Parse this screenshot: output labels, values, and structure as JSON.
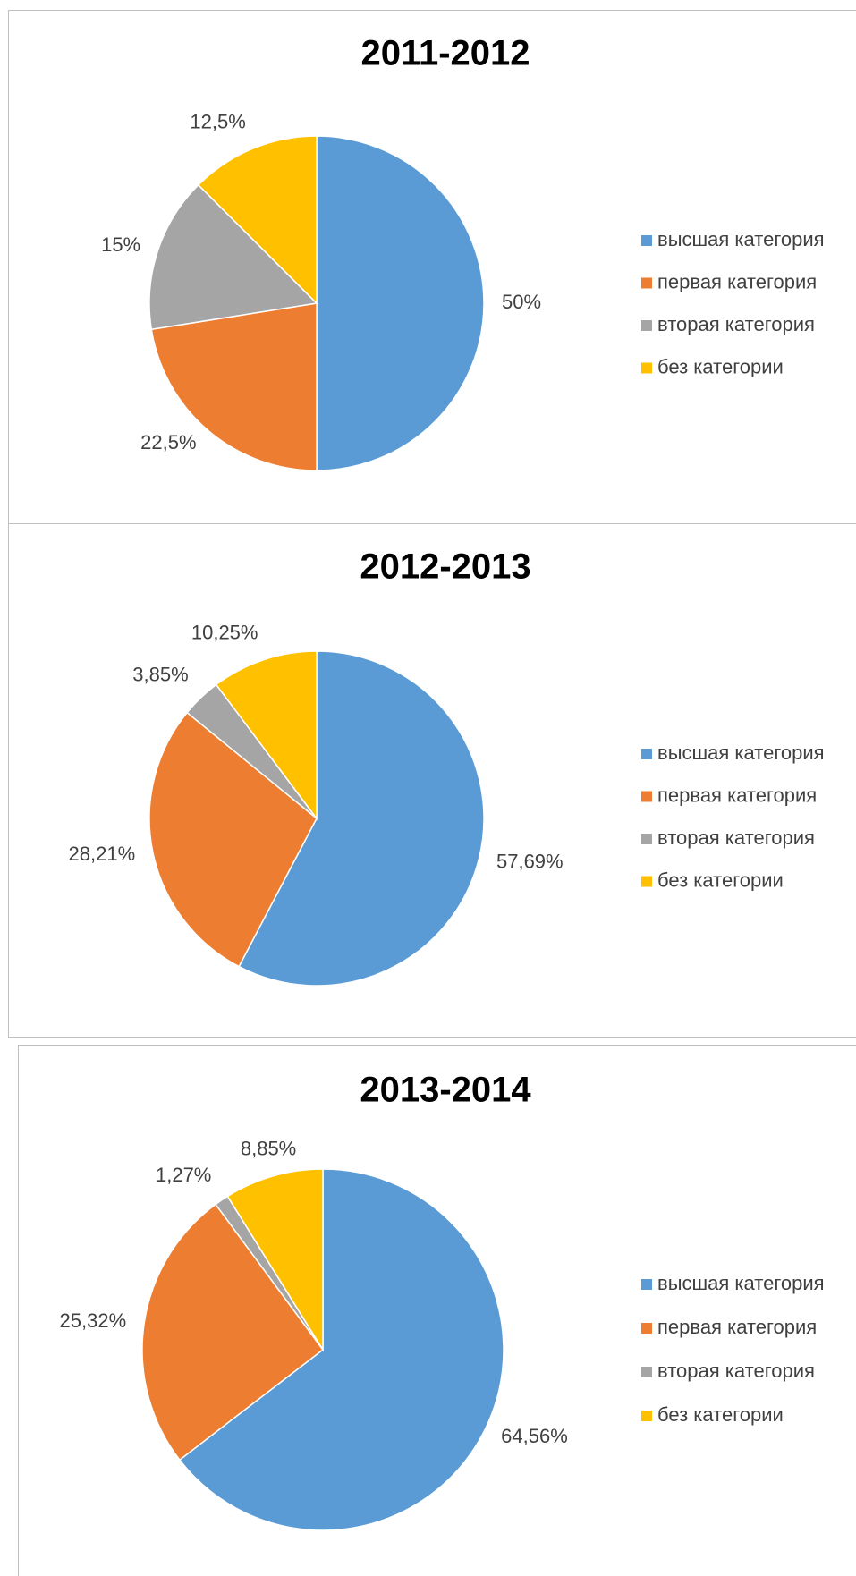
{
  "chart_data": [
    {
      "type": "pie",
      "title": "2011-2012",
      "categories": [
        "высшая категория",
        "первая категория",
        "вторая категория",
        "без категории"
      ],
      "values": [
        50,
        22.5,
        15,
        12.5
      ],
      "value_labels": [
        "50%",
        "22,5%",
        "15%",
        "12,5%"
      ],
      "colors": [
        "#5b9bd5",
        "#ed7d31",
        "#a5a5a5",
        "#ffc000"
      ],
      "legend": "right"
    },
    {
      "type": "pie",
      "title": "2012-2013",
      "categories": [
        "высшая категория",
        "первая категория",
        "вторая категория",
        "без категории"
      ],
      "values": [
        57.69,
        28.21,
        3.85,
        10.25
      ],
      "value_labels": [
        "57,69%",
        "28,21%",
        "3,85%",
        "10,25%"
      ],
      "colors": [
        "#5b9bd5",
        "#ed7d31",
        "#a5a5a5",
        "#ffc000"
      ],
      "legend": "right"
    },
    {
      "type": "pie",
      "title": "2013-2014",
      "categories": [
        "высшая категория",
        "первая категория",
        "вторая категория",
        "без категории"
      ],
      "values": [
        64.56,
        25.32,
        1.27,
        8.85
      ],
      "value_labels": [
        "64,56%",
        "25,32%",
        "1,27%",
        "8,85%"
      ],
      "colors": [
        "#5b9bd5",
        "#ed7d31",
        "#a5a5a5",
        "#ffc000"
      ],
      "legend": "right"
    }
  ]
}
